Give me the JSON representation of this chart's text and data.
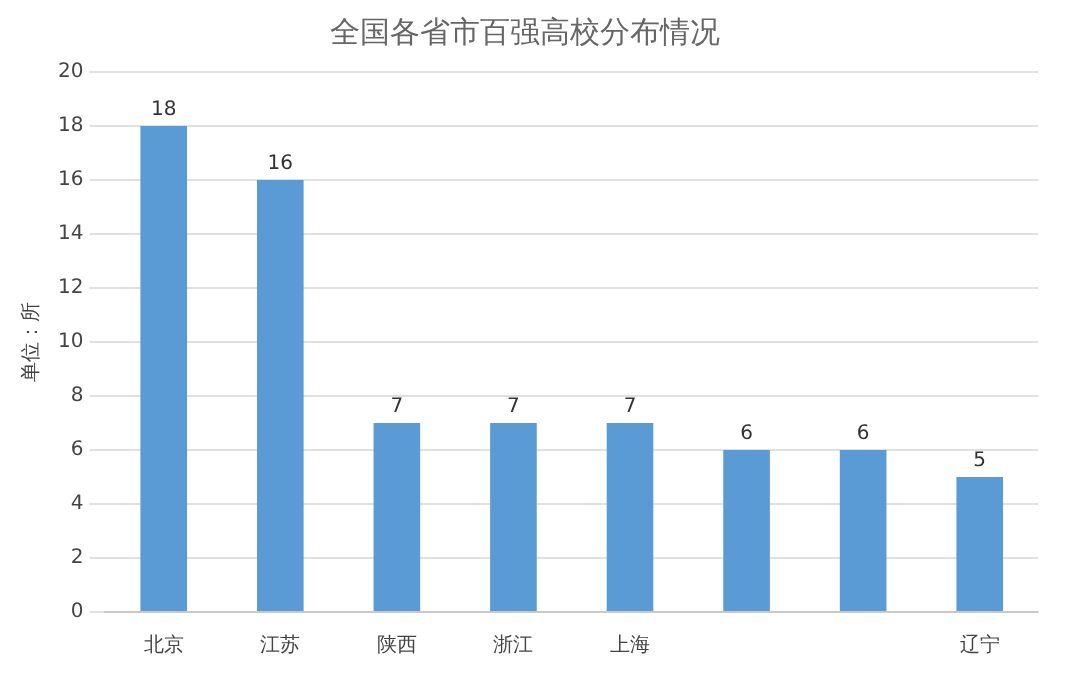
{
  "chart_data": {
    "type": "bar",
    "title": "全国各省市百强高校分布情况",
    "ylabel": "单位：所",
    "categories": [
      "北京",
      "江苏",
      "陕西",
      "浙江",
      "上海",
      null,
      null,
      "辽宁"
    ],
    "values": [
      18,
      16,
      7,
      7,
      7,
      6,
      6,
      5
    ],
    "color": "#5b9bd5",
    "ylim": [
      0,
      20
    ],
    "yticks": [
      0,
      2,
      4,
      6,
      8,
      10,
      12,
      14,
      16,
      18,
      20
    ],
    "grid": "y",
    "data_labels": true,
    "legend": false
  }
}
